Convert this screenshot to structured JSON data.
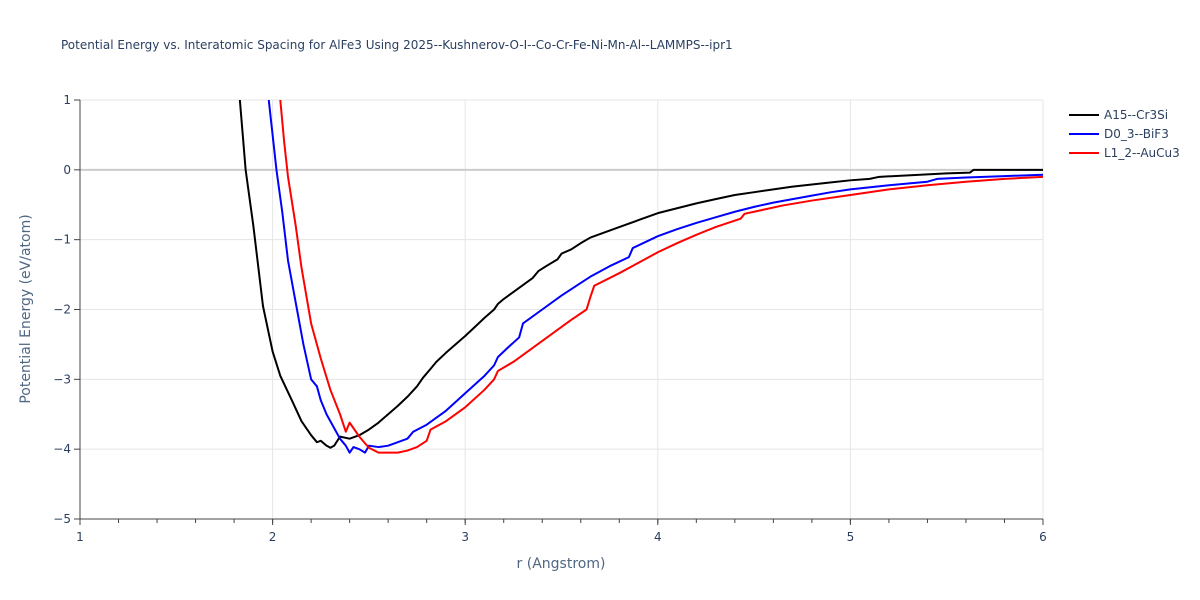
{
  "chart_data": {
    "type": "line",
    "title": "Potential Energy vs. Interatomic Spacing for AlFe3 Using 2025--Kushnerov-O-I--Co-Cr-Fe-Ni-Mn-Al--LAMMPS--ipr1",
    "xlabel": "r (Angstrom)",
    "ylabel": "Potential Energy (eV/atom)",
    "xlim": [
      1,
      6
    ],
    "ylim": [
      -5,
      1
    ],
    "x_ticks": [
      1,
      2,
      3,
      4,
      5,
      6
    ],
    "y_ticks": [
      -5,
      -4,
      -3,
      -2,
      -1,
      0,
      1
    ],
    "x_tick_labels": [
      "1",
      "2",
      "3",
      "4",
      "5",
      "6"
    ],
    "y_tick_labels": [
      "−5",
      "−4",
      "−3",
      "−2",
      "−1",
      "0",
      "1"
    ],
    "grid": true,
    "legend_position": "top-right",
    "series": [
      {
        "name": "A15--Cr3Si",
        "color": "#000000",
        "points": [
          [
            1.83,
            1.0
          ],
          [
            1.86,
            0.0
          ],
          [
            1.9,
            -0.8
          ],
          [
            1.95,
            -1.95
          ],
          [
            2.0,
            -2.6
          ],
          [
            2.04,
            -2.95
          ],
          [
            2.1,
            -3.3
          ],
          [
            2.15,
            -3.6
          ],
          [
            2.2,
            -3.8
          ],
          [
            2.23,
            -3.9
          ],
          [
            2.25,
            -3.88
          ],
          [
            2.28,
            -3.95
          ],
          [
            2.3,
            -3.98
          ],
          [
            2.32,
            -3.95
          ],
          [
            2.35,
            -3.82
          ],
          [
            2.4,
            -3.85
          ],
          [
            2.45,
            -3.8
          ],
          [
            2.5,
            -3.72
          ],
          [
            2.55,
            -3.62
          ],
          [
            2.6,
            -3.5
          ],
          [
            2.65,
            -3.38
          ],
          [
            2.7,
            -3.25
          ],
          [
            2.75,
            -3.1
          ],
          [
            2.78,
            -2.98
          ],
          [
            2.82,
            -2.85
          ],
          [
            2.85,
            -2.75
          ],
          [
            2.9,
            -2.62
          ],
          [
            2.95,
            -2.5
          ],
          [
            3.0,
            -2.38
          ],
          [
            3.05,
            -2.25
          ],
          [
            3.1,
            -2.12
          ],
          [
            3.15,
            -2.0
          ],
          [
            3.17,
            -1.92
          ],
          [
            3.2,
            -1.85
          ],
          [
            3.25,
            -1.75
          ],
          [
            3.3,
            -1.65
          ],
          [
            3.35,
            -1.55
          ],
          [
            3.38,
            -1.45
          ],
          [
            3.42,
            -1.38
          ],
          [
            3.48,
            -1.28
          ],
          [
            3.5,
            -1.2
          ],
          [
            3.55,
            -1.14
          ],
          [
            3.6,
            -1.05
          ],
          [
            3.65,
            -0.97
          ],
          [
            3.7,
            -0.92
          ],
          [
            3.8,
            -0.82
          ],
          [
            3.9,
            -0.72
          ],
          [
            4.0,
            -0.62
          ],
          [
            4.1,
            -0.55
          ],
          [
            4.2,
            -0.48
          ],
          [
            4.3,
            -0.42
          ],
          [
            4.4,
            -0.36
          ],
          [
            4.5,
            -0.32
          ],
          [
            4.6,
            -0.28
          ],
          [
            4.7,
            -0.24
          ],
          [
            4.8,
            -0.21
          ],
          [
            4.9,
            -0.18
          ],
          [
            5.0,
            -0.15
          ],
          [
            5.1,
            -0.13
          ],
          [
            5.15,
            -0.1
          ],
          [
            5.3,
            -0.08
          ],
          [
            5.5,
            -0.05
          ],
          [
            5.62,
            -0.04
          ],
          [
            5.64,
            0.0
          ],
          [
            6.0,
            0.0
          ]
        ]
      },
      {
        "name": "D0_3--BiF3",
        "color": "#0000ff",
        "points": [
          [
            1.98,
            1.0
          ],
          [
            2.02,
            0.0
          ],
          [
            2.05,
            -0.6
          ],
          [
            2.08,
            -1.3
          ],
          [
            2.12,
            -1.9
          ],
          [
            2.16,
            -2.5
          ],
          [
            2.2,
            -3.0
          ],
          [
            2.23,
            -3.1
          ],
          [
            2.25,
            -3.3
          ],
          [
            2.28,
            -3.5
          ],
          [
            2.32,
            -3.7
          ],
          [
            2.35,
            -3.85
          ],
          [
            2.38,
            -3.95
          ],
          [
            2.4,
            -4.05
          ],
          [
            2.42,
            -3.97
          ],
          [
            2.45,
            -4.0
          ],
          [
            2.48,
            -4.05
          ],
          [
            2.5,
            -3.95
          ],
          [
            2.55,
            -3.97
          ],
          [
            2.6,
            -3.95
          ],
          [
            2.65,
            -3.9
          ],
          [
            2.7,
            -3.85
          ],
          [
            2.73,
            -3.75
          ],
          [
            2.8,
            -3.65
          ],
          [
            2.9,
            -3.45
          ],
          [
            3.0,
            -3.2
          ],
          [
            3.1,
            -2.95
          ],
          [
            3.15,
            -2.8
          ],
          [
            3.17,
            -2.68
          ],
          [
            3.22,
            -2.55
          ],
          [
            3.28,
            -2.4
          ],
          [
            3.3,
            -2.2
          ],
          [
            3.4,
            -2.0
          ],
          [
            3.5,
            -1.8
          ],
          [
            3.6,
            -1.62
          ],
          [
            3.65,
            -1.53
          ],
          [
            3.75,
            -1.38
          ],
          [
            3.85,
            -1.25
          ],
          [
            3.87,
            -1.12
          ],
          [
            4.0,
            -0.95
          ],
          [
            4.1,
            -0.85
          ],
          [
            4.2,
            -0.76
          ],
          [
            4.3,
            -0.68
          ],
          [
            4.4,
            -0.6
          ],
          [
            4.5,
            -0.53
          ],
          [
            4.6,
            -0.47
          ],
          [
            4.7,
            -0.42
          ],
          [
            4.8,
            -0.37
          ],
          [
            4.9,
            -0.32
          ],
          [
            5.0,
            -0.28
          ],
          [
            5.2,
            -0.22
          ],
          [
            5.4,
            -0.17
          ],
          [
            5.45,
            -0.13
          ],
          [
            5.6,
            -0.11
          ],
          [
            5.8,
            -0.09
          ],
          [
            6.0,
            -0.07
          ]
        ]
      },
      {
        "name": "L1_2--AuCu3",
        "color": "#ff0000",
        "points": [
          [
            2.04,
            1.0
          ],
          [
            2.06,
            0.4
          ],
          [
            2.08,
            -0.1
          ],
          [
            2.12,
            -0.8
          ],
          [
            2.15,
            -1.4
          ],
          [
            2.2,
            -2.2
          ],
          [
            2.25,
            -2.7
          ],
          [
            2.3,
            -3.15
          ],
          [
            2.35,
            -3.5
          ],
          [
            2.38,
            -3.75
          ],
          [
            2.4,
            -3.62
          ],
          [
            2.45,
            -3.82
          ],
          [
            2.5,
            -3.98
          ],
          [
            2.55,
            -4.05
          ],
          [
            2.58,
            -4.05
          ],
          [
            2.6,
            -4.05
          ],
          [
            2.65,
            -4.05
          ],
          [
            2.7,
            -4.02
          ],
          [
            2.75,
            -3.97
          ],
          [
            2.8,
            -3.88
          ],
          [
            2.82,
            -3.72
          ],
          [
            2.9,
            -3.6
          ],
          [
            3.0,
            -3.4
          ],
          [
            3.1,
            -3.15
          ],
          [
            3.15,
            -3.0
          ],
          [
            3.17,
            -2.88
          ],
          [
            3.25,
            -2.75
          ],
          [
            3.35,
            -2.55
          ],
          [
            3.45,
            -2.35
          ],
          [
            3.55,
            -2.15
          ],
          [
            3.63,
            -2.0
          ],
          [
            3.65,
            -1.82
          ],
          [
            3.67,
            -1.66
          ],
          [
            3.8,
            -1.48
          ],
          [
            3.9,
            -1.33
          ],
          [
            4.0,
            -1.18
          ],
          [
            4.1,
            -1.05
          ],
          [
            4.2,
            -0.93
          ],
          [
            4.3,
            -0.82
          ],
          [
            4.43,
            -0.7
          ],
          [
            4.45,
            -0.63
          ],
          [
            4.55,
            -0.57
          ],
          [
            4.65,
            -0.51
          ],
          [
            4.8,
            -0.44
          ],
          [
            5.0,
            -0.36
          ],
          [
            5.2,
            -0.28
          ],
          [
            5.4,
            -0.22
          ],
          [
            5.6,
            -0.17
          ],
          [
            5.8,
            -0.13
          ],
          [
            6.0,
            -0.1
          ]
        ]
      }
    ]
  }
}
